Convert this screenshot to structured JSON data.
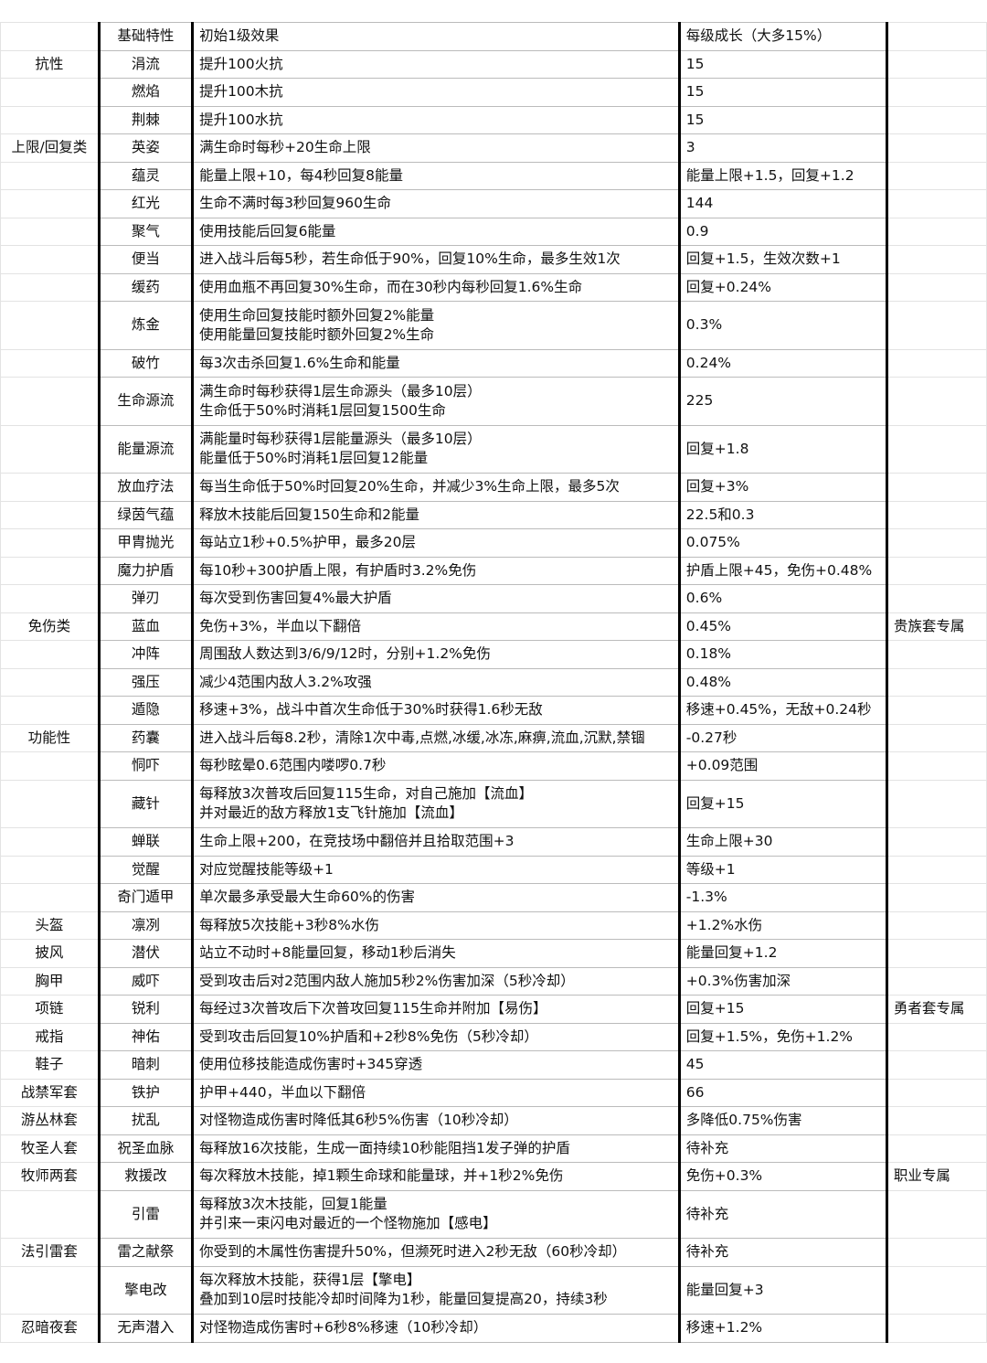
{
  "header": {
    "category": "",
    "name": "基础特性",
    "effect": "初始1级效果",
    "growth": "每级成长（大多15%）",
    "note": ""
  },
  "rows": [
    {
      "cat": "抗性",
      "name": "涓流",
      "effect": [
        "提升100火抗"
      ],
      "growth": "15",
      "note": ""
    },
    {
      "cat": "",
      "name": "燃焰",
      "effect": [
        "提升100木抗"
      ],
      "growth": "15",
      "note": ""
    },
    {
      "cat": "",
      "name": "荆棘",
      "effect": [
        "提升100水抗"
      ],
      "growth": "15",
      "note": ""
    },
    {
      "cat": "上限/回复类",
      "name": "英姿",
      "effect": [
        "满生命时每秒+20生命上限"
      ],
      "growth": "3",
      "note": "",
      "group_start": true
    },
    {
      "cat": "",
      "name": "蕴灵",
      "effect": [
        "能量上限+10，每4秒回复8能量"
      ],
      "growth": "能量上限+1.5，回复+1.2",
      "note": ""
    },
    {
      "cat": "",
      "name": "红光",
      "effect": [
        "生命不满时每3秒回复960生命"
      ],
      "growth": "144",
      "note": ""
    },
    {
      "cat": "",
      "name": "聚气",
      "effect": [
        "使用技能后回复6能量"
      ],
      "growth": "0.9",
      "note": ""
    },
    {
      "cat": "",
      "name": "便当",
      "effect": [
        "进入战斗后每5秒，若生命低于90%，回复10%生命，最多生效1次"
      ],
      "growth": "回复+1.5，生效次数+1",
      "note": ""
    },
    {
      "cat": "",
      "name": "缓药",
      "effect": [
        "使用血瓶不再回复30%生命，而在30秒内每秒回复1.6%生命"
      ],
      "growth": "回复+0.24%",
      "note": ""
    },
    {
      "cat": "",
      "name": "炼金",
      "effect": [
        "使用生命回复技能时额外回复2%能量",
        "使用能量回复技能时额外回复2%生命"
      ],
      "growth": "0.3%",
      "note": ""
    },
    {
      "cat": "",
      "name": "破竹",
      "effect": [
        "每3次击杀回复1.6%生命和能量"
      ],
      "growth": "0.24%",
      "note": ""
    },
    {
      "cat": "",
      "name": "生命源流",
      "effect": [
        "满生命时每秒获得1层生命源头（最多10层）",
        "生命低于50%时消耗1层回复1500生命"
      ],
      "growth": "225",
      "note": ""
    },
    {
      "cat": "",
      "name": "能量源流",
      "effect": [
        "满能量时每秒获得1层能量源头（最多10层）",
        "能量低于50%时消耗1层回复12能量"
      ],
      "growth": "回复+1.8",
      "note": ""
    },
    {
      "cat": "",
      "name": "放血疗法",
      "effect": [
        "每当生命低于50%时回复20%生命，并减少3%生命上限，最多5次"
      ],
      "growth": "回复+3%",
      "note": ""
    },
    {
      "cat": "",
      "name": "绿茵气蕴",
      "effect": [
        "释放木技能后回复150生命和2能量"
      ],
      "growth": "22.5和0.3",
      "note": ""
    },
    {
      "cat": "",
      "name": "甲胄抛光",
      "effect": [
        "每站立1秒+0.5%护甲，最多20层"
      ],
      "growth": "0.075%",
      "note": ""
    },
    {
      "cat": "",
      "name": "魔力护盾",
      "effect": [
        "每10秒+300护盾上限，有护盾时3.2%免伤"
      ],
      "growth": "护盾上限+45，免伤+0.48%",
      "note": ""
    },
    {
      "cat": "",
      "name": "弹刃",
      "effect": [
        "每次受到伤害回复4%最大护盾"
      ],
      "growth": "0.6%",
      "note": ""
    },
    {
      "cat": "免伤类",
      "name": "蓝血",
      "effect": [
        "免伤+3%，半血以下翻倍"
      ],
      "growth": "0.45%",
      "note": "贵族套专属",
      "group_start": true
    },
    {
      "cat": "",
      "name": "冲阵",
      "effect": [
        "周围敌人数达到3/6/9/12时，分别+1.2%免伤"
      ],
      "growth": "0.18%",
      "note": ""
    },
    {
      "cat": "",
      "name": "强压",
      "effect": [
        "减少4范围内敌人3.2%攻强"
      ],
      "growth": "0.48%",
      "note": ""
    },
    {
      "cat": "",
      "name": "遁隐",
      "effect": [
        "移速+3%，战斗中首次生命低于30%时获得1.6秒无敌"
      ],
      "growth": "移速+0.45%，无敌+0.24秒",
      "note": ""
    },
    {
      "cat": "功能性",
      "name": "药囊",
      "effect": [
        "进入战斗后每8.2秒，清除1次中毒,点燃,冰缓,冰冻,麻痹,流血,沉默,禁锢"
      ],
      "growth": "-0.27秒",
      "note": "",
      "group_start": true
    },
    {
      "cat": "",
      "name": "恫吓",
      "effect": [
        "每秒眩晕0.6范围内喽啰0.7秒"
      ],
      "growth": "+0.09范围",
      "note": ""
    },
    {
      "cat": "",
      "name": "藏针",
      "effect": [
        "每释放3次普攻后回复115生命，对自己施加【流血】",
        "并对最近的敌方释放1支飞针施加【流血】"
      ],
      "growth": "回复+15",
      "note": ""
    },
    {
      "cat": "",
      "name": "蝉联",
      "effect": [
        "生命上限+200，在竞技场中翻倍并且拾取范围+3"
      ],
      "growth": "生命上限+30",
      "note": ""
    },
    {
      "cat": "",
      "name": "觉醒",
      "effect": [
        "对应觉醒技能等级+1"
      ],
      "growth": "等级+1",
      "note": ""
    },
    {
      "cat": "",
      "name": "奇门遁甲",
      "effect": [
        "单次最多承受最大生命60%的伤害"
      ],
      "growth": "-1.3%",
      "note": ""
    },
    {
      "cat": "头盔",
      "name": "凛冽",
      "effect": [
        "每释放5次技能+3秒8%水伤"
      ],
      "growth": "+1.2%水伤",
      "note": "",
      "group_start": true
    },
    {
      "cat": "披风",
      "name": "潜伏",
      "effect": [
        "站立不动时+8能量回复，移动1秒后消失"
      ],
      "growth": "能量回复+1.2",
      "note": ""
    },
    {
      "cat": "胸甲",
      "name": "威吓",
      "effect": [
        "受到攻击后对2范围内敌人施加5秒2%伤害加深（5秒冷却）"
      ],
      "growth": "+0.3%伤害加深",
      "note": ""
    },
    {
      "cat": "项链",
      "name": "锐利",
      "effect": [
        "每经过3次普攻后下次普攻回复115生命并附加【易伤】"
      ],
      "growth": "回复+15",
      "note": "勇者套专属"
    },
    {
      "cat": "戒指",
      "name": "神佑",
      "effect": [
        "受到攻击后回复10%护盾和+2秒8%免伤（5秒冷却）"
      ],
      "growth": "回复+1.5%，免伤+1.2%",
      "note": ""
    },
    {
      "cat": "鞋子",
      "name": "暗刺",
      "effect": [
        "使用位移技能造成伤害时+345穿透"
      ],
      "growth": "45",
      "note": ""
    },
    {
      "cat": "战禁军套",
      "name": "铁护",
      "effect": [
        "护甲+440，半血以下翻倍"
      ],
      "growth": "66",
      "note": "",
      "group_start": true
    },
    {
      "cat": "游丛林套",
      "name": "扰乱",
      "effect": [
        "对怪物造成伤害时降低其6秒5%伤害（10秒冷却）"
      ],
      "growth": "多降低0.75%伤害",
      "note": ""
    },
    {
      "cat": "牧圣人套",
      "name": "祝圣血脉",
      "effect": [
        "每释放16次技能，生成一面持续10秒能阻挡1发子弹的护盾"
      ],
      "growth": "待补充",
      "note": ""
    },
    {
      "cat": "牧师两套",
      "name": "救援改",
      "effect": [
        "每次释放木技能，掉1颗生命球和能量球，并+1秒2%免伤"
      ],
      "growth": "免伤+0.3%",
      "note": "职业专属"
    },
    {
      "cat": "",
      "name": "引雷",
      "effect": [
        "每释放3次木技能，回复1能量",
        "并引来一束闪电对最近的一个怪物施加【感电】"
      ],
      "growth": "待补充",
      "note": ""
    },
    {
      "cat": "法引雷套",
      "name": "雷之献祭",
      "effect": [
        "你受到的木属性伤害提升50%，但濒死时进入2秒无敌（60秒冷却）"
      ],
      "growth": "待补充",
      "note": ""
    },
    {
      "cat": "",
      "name": "擎电改",
      "effect": [
        "每次释放木技能，获得1层【擎电】",
        "叠加到10层时技能冷却时间降为1秒，能量回复提高20，持续3秒"
      ],
      "growth": "能量回复+3",
      "note": ""
    },
    {
      "cat": "忍暗夜套",
      "name": "无声潜入",
      "effect": [
        "对怪物造成伤害时+6秒8%移速（10秒冷却）"
      ],
      "growth": "移速+1.2%",
      "note": ""
    }
  ]
}
